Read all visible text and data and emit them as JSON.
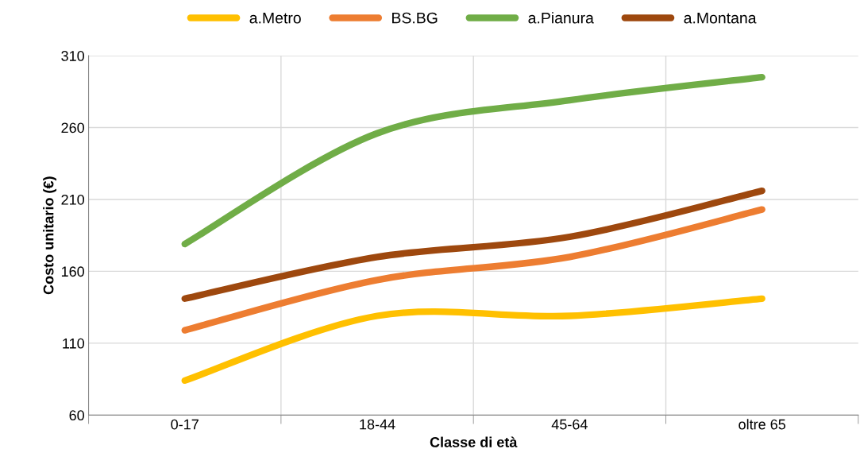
{
  "chart_data": {
    "type": "line",
    "xlabel": "Classe di età",
    "ylabel": "Costo unitario (€)",
    "categories": [
      "0-17",
      "18-44",
      "45-64",
      "oltre 65"
    ],
    "series": [
      {
        "name": "a.Metro",
        "color": "#ffc000",
        "values": [
          84,
          129,
          129,
          141
        ]
      },
      {
        "name": "BS.BG",
        "color": "#ed7d31",
        "values": [
          119,
          154,
          170,
          203
        ]
      },
      {
        "name": "a.Pianura",
        "color": "#70ad47",
        "values": [
          179,
          256,
          279,
          295
        ]
      },
      {
        "name": "a.Montana",
        "color": "#9e480e",
        "values": [
          141,
          170,
          184,
          216
        ]
      }
    ],
    "ylim": [
      60,
      310
    ],
    "yticks": [
      60,
      110,
      160,
      210,
      260,
      310
    ],
    "grid": true,
    "legend": "top",
    "marker": "none",
    "line_style": "solid"
  }
}
